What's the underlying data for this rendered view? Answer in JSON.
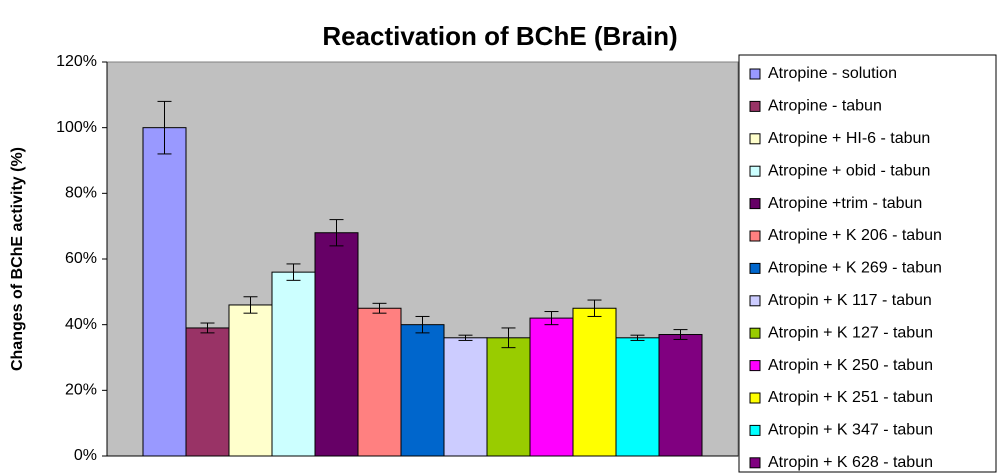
{
  "chart_data": {
    "type": "bar",
    "title": "Reactivation of BChE (Brain)",
    "y_label": "Changes of BChE activity (%)",
    "categories": [
      null
    ],
    "ylim": [
      0,
      120
    ],
    "yticks": [
      {
        "value": 0,
        "label": "0%"
      },
      {
        "value": 20,
        "label": "20%"
      },
      {
        "value": 40,
        "label": "40%"
      },
      {
        "value": 60,
        "label": "60%"
      },
      {
        "value": 80,
        "label": "80%"
      },
      {
        "value": 100,
        "label": "100%"
      },
      {
        "value": 120,
        "label": "120%"
      }
    ],
    "legend": "right",
    "series": [
      {
        "name": "Atropine - solution",
        "color": "#9999ff",
        "values": [
          100
        ],
        "errors": [
          8
        ]
      },
      {
        "name": "Atropine - tabun",
        "color": "#993366",
        "values": [
          39
        ],
        "errors": [
          1.5
        ]
      },
      {
        "name": "Atropine + HI-6 - tabun",
        "color": "#ffffcc",
        "values": [
          46
        ],
        "errors": [
          2.5
        ]
      },
      {
        "name": "Atropine + obid - tabun",
        "color": "#ccffff",
        "values": [
          56
        ],
        "errors": [
          2.5
        ]
      },
      {
        "name": "Atropine +trim - tabun",
        "color": "#660066",
        "values": [
          68
        ],
        "errors": [
          4
        ]
      },
      {
        "name": "Atropine + K 206 - tabun",
        "color": "#ff8080",
        "values": [
          45
        ],
        "errors": [
          1.5
        ]
      },
      {
        "name": "Atropine + K 269 - tabun",
        "color": "#0066cc",
        "values": [
          40
        ],
        "errors": [
          2.5
        ]
      },
      {
        "name": "Atropin + K 117 - tabun",
        "color": "#ccccff",
        "values": [
          36
        ],
        "errors": [
          0.8
        ]
      },
      {
        "name": "Atropin + K 127 - tabun",
        "color": "#99cc00",
        "values": [
          36
        ],
        "errors": [
          3
        ]
      },
      {
        "name": "Atropin + K 250 - tabun",
        "color": "#ff00ff",
        "values": [
          42
        ],
        "errors": [
          2
        ]
      },
      {
        "name": "Atropin + K 251 - tabun",
        "color": "#ffff00",
        "values": [
          45
        ],
        "errors": [
          2.5
        ]
      },
      {
        "name": "Atropin + K 347 - tabun",
        "color": "#00ffff",
        "values": [
          36
        ],
        "errors": [
          0.8
        ]
      },
      {
        "name": "Atropin + K 628 - tabun",
        "color": "#800080",
        "values": [
          37
        ],
        "errors": [
          1.5
        ]
      }
    ]
  }
}
